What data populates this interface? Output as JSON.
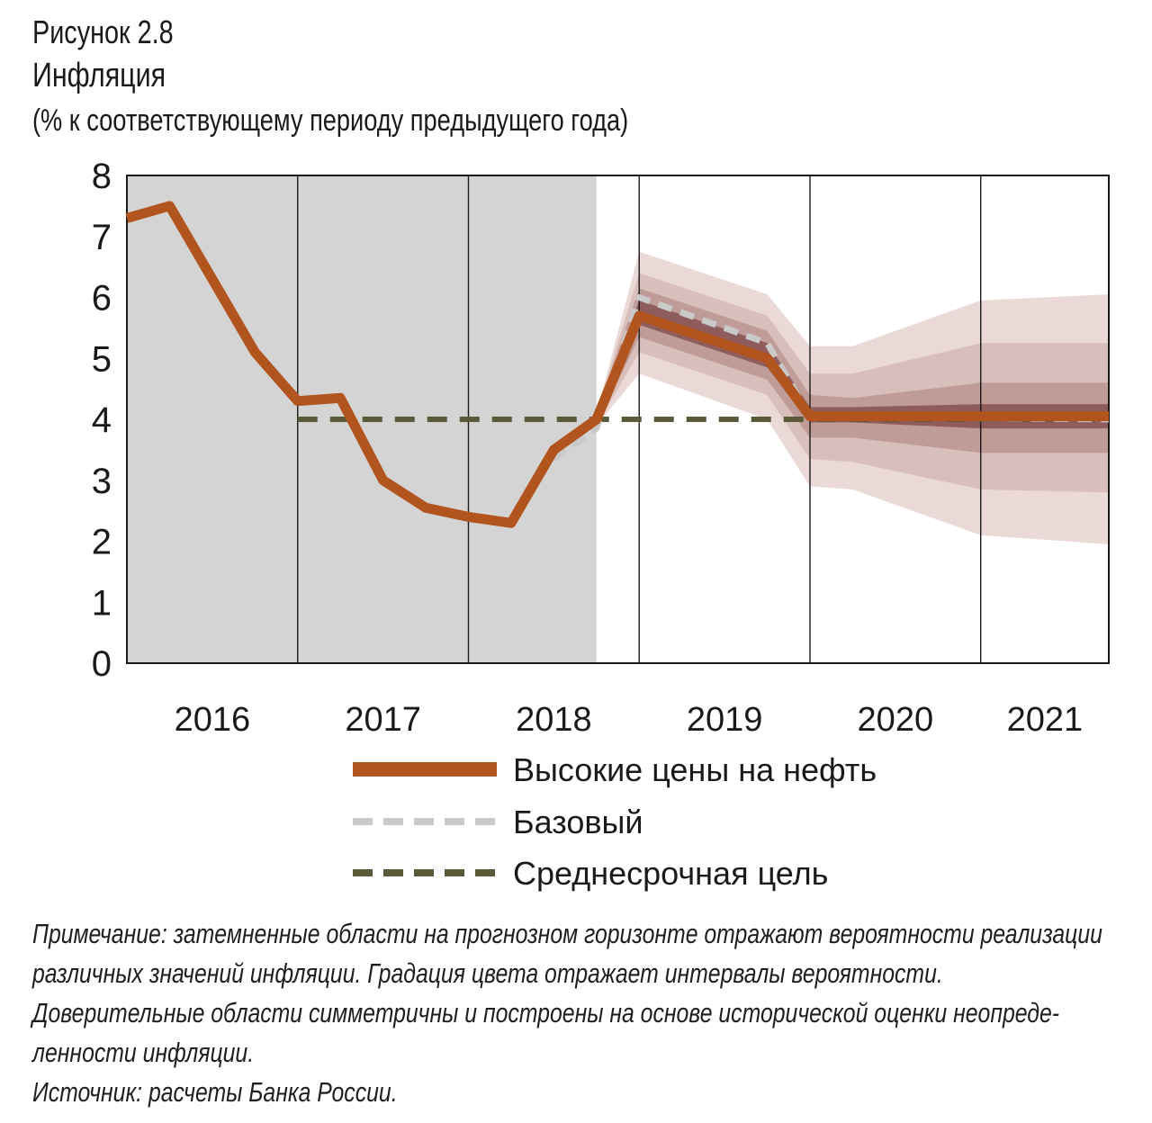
{
  "figure": {
    "label": "Рисунок 2.8",
    "title": "Инфляция",
    "subtitle": "(% к соответствующему периоду предыдущего года)"
  },
  "chart_data": {
    "type": "line",
    "ylim": [
      0,
      8
    ],
    "y_ticks": [
      "0",
      "1",
      "2",
      "3",
      "4",
      "5",
      "6",
      "7",
      "8"
    ],
    "x_categories": [
      "2016",
      "2017",
      "2018",
      "2019",
      "2020",
      "2021"
    ],
    "xlim": [
      2016.0,
      2021.75
    ],
    "history_shaded_until": 2018.75,
    "series": [
      {
        "name": "Высокие цены на нефть",
        "color": "#b2541d",
        "style": "solid",
        "points": [
          [
            2016.0,
            7.3
          ],
          [
            2016.25,
            7.5
          ],
          [
            2016.75,
            5.1
          ],
          [
            2017.0,
            4.3
          ],
          [
            2017.25,
            4.35
          ],
          [
            2017.5,
            3.0
          ],
          [
            2017.75,
            2.55
          ],
          [
            2018.0,
            2.4
          ],
          [
            2018.25,
            2.3
          ],
          [
            2018.5,
            3.5
          ],
          [
            2018.75,
            4.0
          ],
          [
            2019.0,
            5.7
          ],
          [
            2019.75,
            5.0
          ],
          [
            2020.0,
            4.05
          ],
          [
            2021.75,
            4.05
          ]
        ]
      },
      {
        "name": "Базовый",
        "color": "#c9c9c9",
        "style": "dashed",
        "points": [
          [
            2018.5,
            3.35
          ],
          [
            2018.75,
            3.85
          ],
          [
            2019.0,
            6.0
          ],
          [
            2019.75,
            5.25
          ],
          [
            2020.0,
            4.05
          ],
          [
            2021.75,
            4.0
          ]
        ]
      },
      {
        "name": "Среднесрочная цель",
        "color": "#5a5a3a",
        "style": "dashed",
        "points": [
          [
            2017.0,
            4.0
          ],
          [
            2021.75,
            4.0
          ]
        ]
      }
    ],
    "confidence_bands": {
      "x": [
        2018.75,
        2019.0,
        2019.75,
        2020.0,
        2020.25,
        2021.0,
        2021.75
      ],
      "bands": [
        {
          "lower": [
            3.9,
            4.75,
            4.0,
            2.9,
            2.85,
            2.1,
            1.95
          ],
          "upper": [
            4.1,
            6.75,
            6.05,
            5.2,
            5.2,
            5.95,
            6.05
          ],
          "color": "#ead9d6"
        },
        {
          "lower": [
            3.9,
            5.1,
            4.4,
            3.35,
            3.3,
            2.85,
            2.8
          ],
          "upper": [
            4.1,
            6.4,
            5.7,
            4.75,
            4.75,
            5.25,
            5.25
          ],
          "color": "#d9bfbb"
        },
        {
          "lower": [
            3.9,
            5.35,
            4.65,
            3.7,
            3.7,
            3.45,
            3.45
          ],
          "upper": [
            4.1,
            6.15,
            5.45,
            4.4,
            4.35,
            4.6,
            4.6
          ],
          "color": "#bf9c98"
        },
        {
          "lower": [
            3.95,
            5.55,
            4.85,
            3.95,
            3.95,
            3.85,
            3.85
          ],
          "upper": [
            4.05,
            5.95,
            5.25,
            4.2,
            4.2,
            4.25,
            4.25
          ],
          "color": "#8e5c5c"
        }
      ]
    },
    "legend_position": "bottom"
  },
  "note": {
    "line1": "Примечание: затемненные области на прогнозном горизонте отражают вероятности реализации",
    "line2": "различных значений инфляции. Градация цвета отражает интервалы вероятности.",
    "line3": "Доверительные области симметричны и построены на основе исторической оценки неопреде-",
    "line4": "ленности инфляции.",
    "source": "Источник: расчеты Банка России."
  }
}
